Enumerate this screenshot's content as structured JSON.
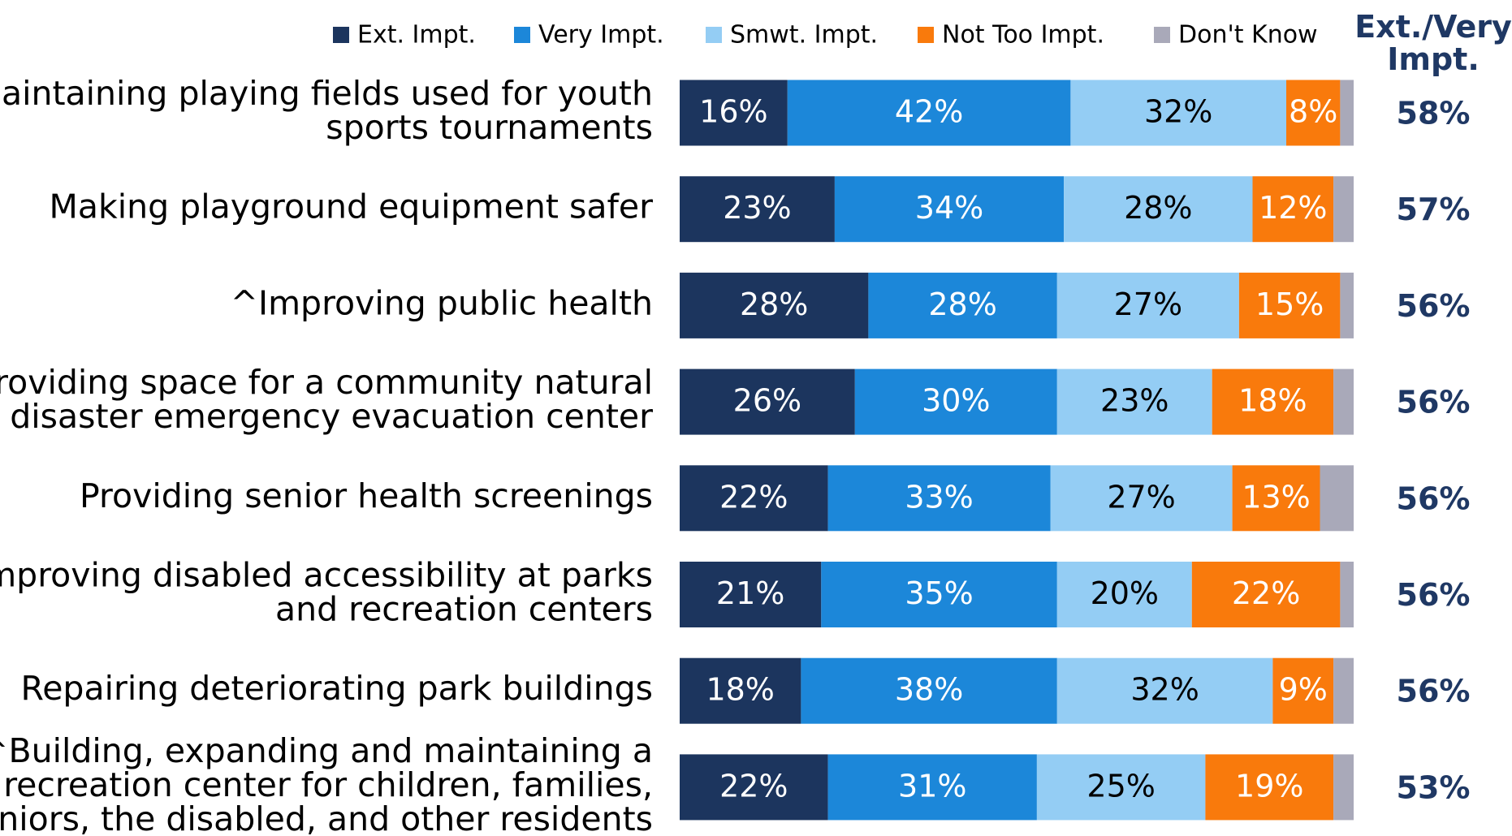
{
  "chart_data": {
    "type": "stacked-bar",
    "orientation": "horizontal",
    "categories": [
      "Maintaining playing fields used for youth\nsports tournaments",
      "Making playground equipment safer",
      "^Improving public health",
      "Providing space for a community natural\ndisaster emergency evacuation center",
      "Providing senior health screenings",
      "Improving disabled accessibility at parks\nand recreation centers",
      "Repairing deteriorating park buildings",
      "^Building, expanding and maintaining a\nrecreation center for children, families,\nseniors, the disabled, and other residents"
    ],
    "xlim": [
      0,
      100
    ],
    "legend": "top",
    "series": [
      {
        "name": "Ext. Impt.",
        "color": "#1c355e",
        "values": [
          16,
          23,
          28,
          26,
          22,
          21,
          18,
          22
        ],
        "value_labels": [
          "16%",
          "23%",
          "28%",
          "26%",
          "22%",
          "21%",
          "18%",
          "22%"
        ]
      },
      {
        "name": "Very Impt.",
        "color": "#1c87d9",
        "values": [
          42,
          34,
          28,
          30,
          33,
          35,
          38,
          31
        ],
        "value_labels": [
          "42%",
          "34%",
          "28%",
          "30%",
          "33%",
          "35%",
          "38%",
          "31%"
        ]
      },
      {
        "name": "Smwt. Impt.",
        "color": "#94cdf4",
        "values": [
          32,
          28,
          27,
          23,
          27,
          20,
          32,
          25
        ],
        "value_labels": [
          "32%",
          "28%",
          "27%",
          "23%",
          "27%",
          "20%",
          "32%",
          "25%"
        ]
      },
      {
        "name": "Not Too Impt.",
        "color": "#f97a0c",
        "values": [
          8,
          12,
          15,
          18,
          13,
          22,
          9,
          19
        ],
        "value_labels": [
          "8%",
          "12%",
          "15%",
          "18%",
          "13%",
          "22%",
          "9%",
          "19%"
        ]
      },
      {
        "name": "Don't Know",
        "color": "#a9a9b9",
        "values": [
          2,
          3,
          2,
          3,
          5,
          2,
          3,
          3
        ]
      }
    ],
    "totals": {
      "title": "Ext./Very\nImpt.",
      "color": "#1f3864",
      "values": [
        58,
        57,
        56,
        56,
        56,
        56,
        56,
        53
      ],
      "value_labels": [
        "58%",
        "57%",
        "56%",
        "56%",
        "56%",
        "56%",
        "56%",
        "53%"
      ]
    }
  }
}
